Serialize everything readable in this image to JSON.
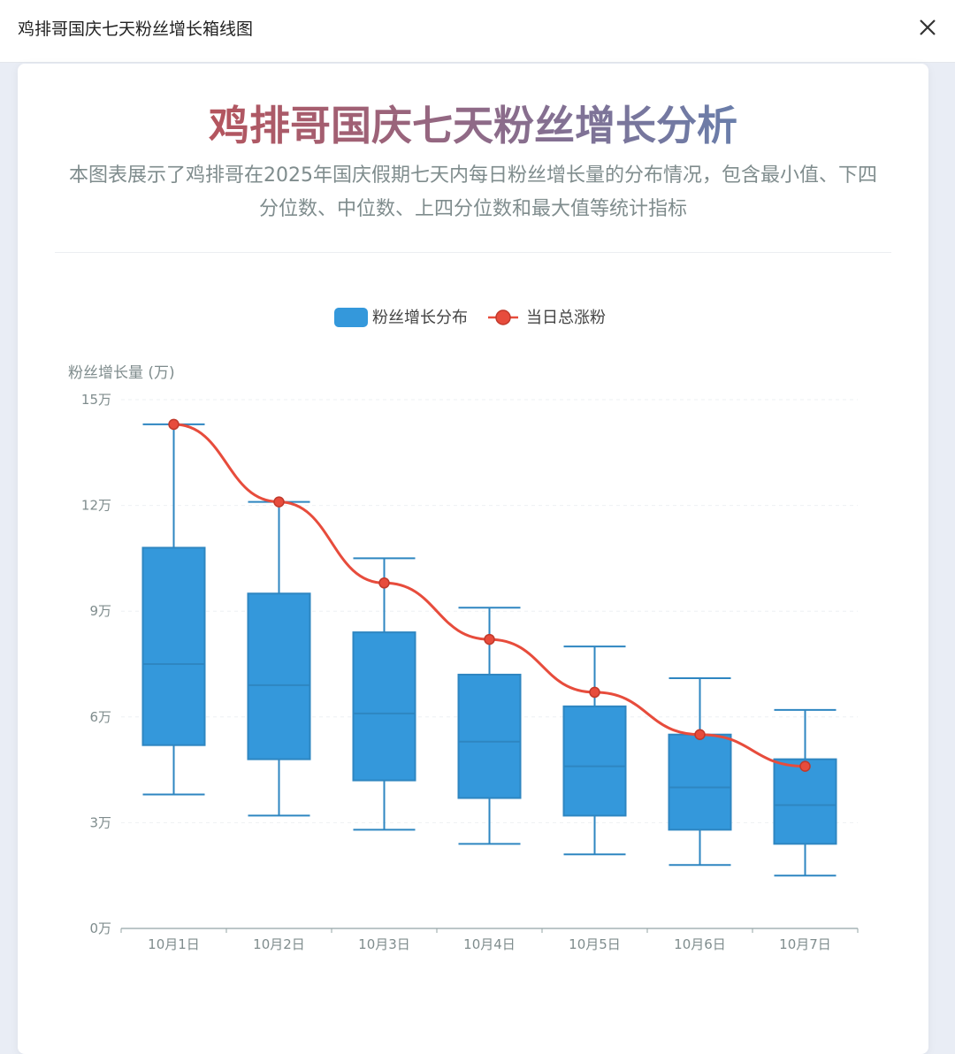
{
  "window": {
    "title": "鸡排哥国庆七天粉丝增长箱线图",
    "close_icon": "close-icon"
  },
  "header": {
    "title": "鸡排哥国庆七天粉丝增长分析",
    "subtitle": "本图表展示了鸡排哥在2025年国庆假期七天内每日粉丝增长量的分布情况，包含最小值、下四分位数、中位数、上四分位数和最大值等统计指标"
  },
  "colors": {
    "box_fill": "#3498db",
    "box_stroke": "#2e86c1",
    "line": "#e74c3c"
  },
  "chart_data": {
    "type": "boxplot",
    "ylabel": "粉丝增长量 (万)",
    "ylim": [
      0,
      15
    ],
    "yticks": [
      "0万",
      "3万",
      "6万",
      "9万",
      "12万",
      "15万"
    ],
    "ytick_values": [
      0,
      3,
      6,
      9,
      12,
      15
    ],
    "grid": true,
    "legend_position": "top-center",
    "categories": [
      "10月1日",
      "10月2日",
      "10月3日",
      "10月4日",
      "10月5日",
      "10月6日",
      "10月7日"
    ],
    "series": [
      {
        "name": "粉丝增长分布",
        "type": "boxplot",
        "values": [
          [
            3.8,
            5.2,
            7.5,
            10.8,
            14.3
          ],
          [
            3.2,
            4.8,
            6.9,
            9.5,
            12.1
          ],
          [
            2.8,
            4.2,
            6.1,
            8.4,
            10.5
          ],
          [
            2.4,
            3.7,
            5.3,
            7.2,
            9.1
          ],
          [
            2.1,
            3.2,
            4.6,
            6.3,
            8.0
          ],
          [
            1.8,
            2.8,
            4.0,
            5.5,
            7.1
          ],
          [
            1.5,
            2.4,
            3.5,
            4.8,
            6.2
          ]
        ]
      },
      {
        "name": "当日总涨粉",
        "type": "line",
        "values": [
          14.3,
          12.1,
          9.8,
          8.2,
          6.7,
          5.5,
          4.6
        ]
      }
    ]
  }
}
